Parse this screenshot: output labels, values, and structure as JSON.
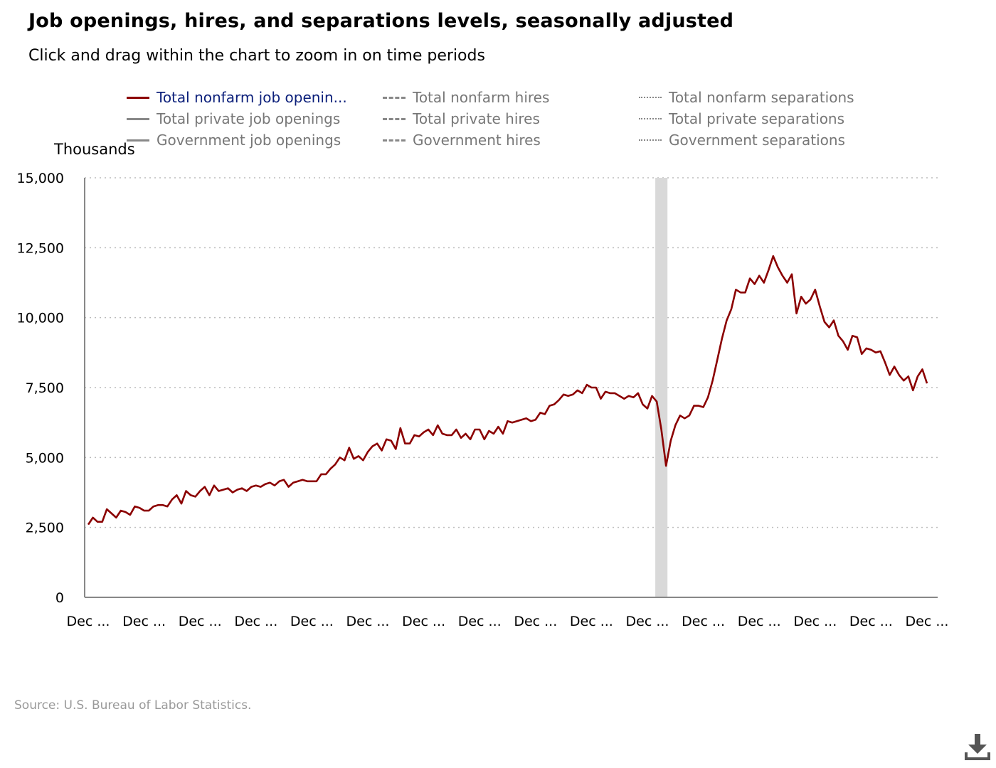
{
  "title": "Job openings, hires, and separations levels, seasonally adjusted",
  "subtitle": "Click and drag within the chart to zoom in on time periods",
  "unit_label": "Thousands",
  "source": "Source: U.S. Bureau of Labor Statistics.",
  "legend": [
    {
      "label": "Total nonfarm job openin...",
      "style": "solid",
      "active": true
    },
    {
      "label": "Total private job openings",
      "style": "solid",
      "active": false
    },
    {
      "label": "Government job openings",
      "style": "solid",
      "active": false
    },
    {
      "label": "Total nonfarm hires",
      "style": "dash",
      "active": false
    },
    {
      "label": "Total private hires",
      "style": "dash",
      "active": false
    },
    {
      "label": "Government hires",
      "style": "dash",
      "active": false
    },
    {
      "label": "Total nonfarm separations",
      "style": "dot",
      "active": false
    },
    {
      "label": "Total private separations",
      "style": "dot",
      "active": false
    },
    {
      "label": "Government separations",
      "style": "dot",
      "active": false
    }
  ],
  "colors": {
    "series": "#8b0000",
    "grid": "#bbbbbb",
    "axis": "#888888",
    "recession": "#d9d9d9"
  },
  "chart_data": {
    "type": "line",
    "title": "Job openings, hires, and separations levels, seasonally adjusted",
    "ylabel": "Thousands",
    "ylim": [
      0,
      15000
    ],
    "yticks": [
      "0",
      "2,500",
      "5,000",
      "7,500",
      "10,000",
      "12,500",
      "15,000"
    ],
    "xtick_labels": [
      "Dec ...",
      "Dec ...",
      "Dec ...",
      "Dec ...",
      "Dec ...",
      "Dec ...",
      "Dec ...",
      "Dec ...",
      "Dec ...",
      "Dec ...",
      "Dec ...",
      "Dec ...",
      "Dec ...",
      "Dec ...",
      "Dec ...",
      "Dec ..."
    ],
    "x_start_month_index": 0,
    "months_per_tick": 12,
    "recession_band_month_index": [
      122,
      124
    ],
    "series": [
      {
        "name": "Total nonfarm job openings",
        "values": [
          2600,
          2850,
          2700,
          2700,
          3150,
          3000,
          2850,
          3100,
          3050,
          2950,
          3250,
          3200,
          3100,
          3100,
          3250,
          3300,
          3300,
          3250,
          3500,
          3650,
          3350,
          3800,
          3650,
          3600,
          3800,
          3950,
          3650,
          4000,
          3800,
          3850,
          3900,
          3750,
          3850,
          3900,
          3800,
          3950,
          4000,
          3950,
          4050,
          4100,
          4000,
          4150,
          4200,
          3950,
          4100,
          4150,
          4200,
          4150,
          4150,
          4150,
          4400,
          4400,
          4600,
          4750,
          5000,
          4900,
          5350,
          4950,
          5050,
          4900,
          5200,
          5400,
          5500,
          5250,
          5650,
          5600,
          5300,
          6050,
          5500,
          5500,
          5800,
          5750,
          5900,
          6000,
          5800,
          6150,
          5850,
          5800,
          5800,
          6000,
          5700,
          5850,
          5650,
          6000,
          6000,
          5650,
          5950,
          5850,
          6100,
          5850,
          6300,
          6250,
          6300,
          6350,
          6400,
          6300,
          6350,
          6600,
          6550,
          6850,
          6900,
          7050,
          7250,
          7200,
          7250,
          7400,
          7300,
          7600,
          7500,
          7500,
          7100,
          7350,
          7300,
          7300,
          7200,
          7100,
          7200,
          7150,
          7300,
          6900,
          6750,
          7200,
          7000,
          6000,
          4700,
          5600,
          6150,
          6500,
          6400,
          6500,
          6850,
          6850,
          6800,
          7150,
          7750,
          8500,
          9250,
          9900,
          10300,
          11000,
          10900,
          10900,
          11400,
          11200,
          11500,
          11250,
          11700,
          12200,
          11800,
          11500,
          11250,
          11550,
          10150,
          10750,
          10500,
          10650,
          11000,
          10400,
          9850,
          9650,
          9900,
          9350,
          9150,
          8850,
          9350,
          9300,
          8700,
          8900,
          8850,
          8750,
          8800,
          8400,
          7950,
          8250,
          7950,
          7750,
          7900,
          7400,
          7900,
          8150,
          7650
        ]
      }
    ]
  }
}
